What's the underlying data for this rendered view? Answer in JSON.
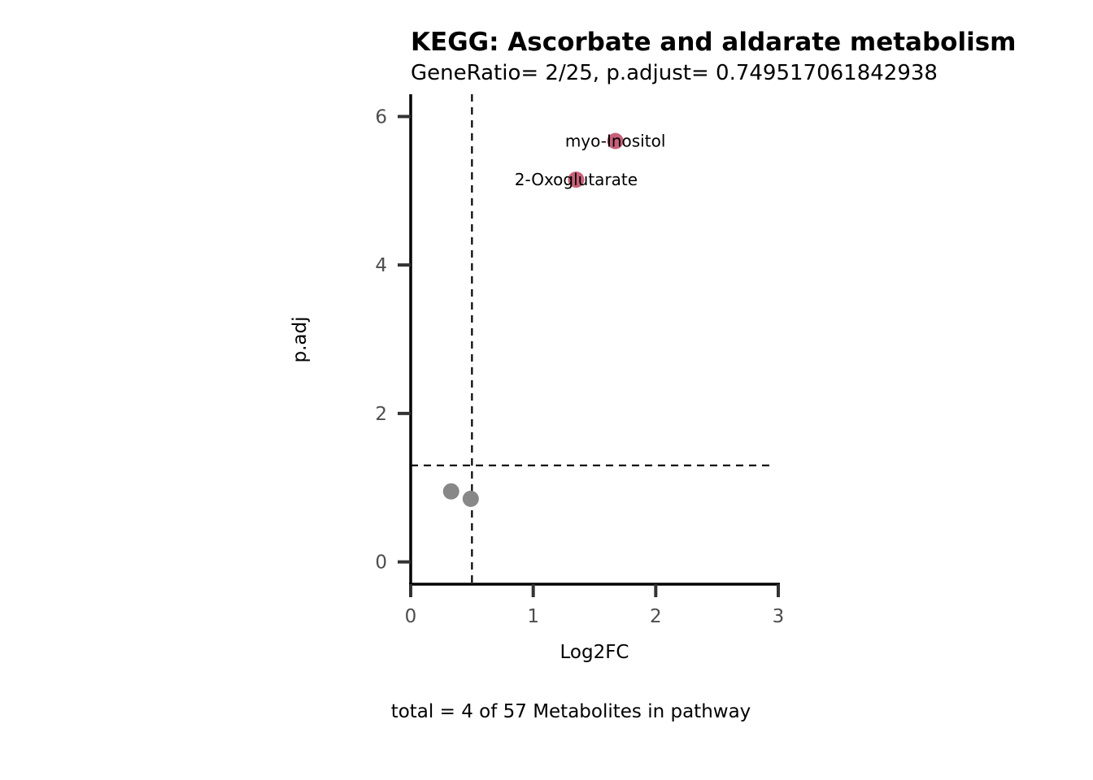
{
  "chart_data": {
    "type": "scatter",
    "title": "KEGG: Ascorbate and aldarate metabolism",
    "subtitle": "GeneRatio= 2/25, p.adjust= 0.749517061842938",
    "xlabel": "Log2FC",
    "ylabel": "p.adj",
    "caption": "total = 4 of 57 Metabolites in pathway",
    "xlim": [
      0,
      3
    ],
    "ylim": [
      -0.3,
      6.3
    ],
    "x_ticks": [
      0,
      1,
      2,
      3
    ],
    "y_ticks": [
      0,
      2,
      4,
      6
    ],
    "thresholds": {
      "vertical_x": 0.5,
      "horizontal_y": 1.3
    },
    "grid": false,
    "colors": {
      "significant": "#C8607A",
      "not_significant": "#888888"
    },
    "points": [
      {
        "x": 1.67,
        "y": 5.67,
        "label": "myo-Inositol",
        "significant": true
      },
      {
        "x": 1.35,
        "y": 5.15,
        "label": "2-Oxoglutarate",
        "significant": true
      },
      {
        "x": 0.33,
        "y": 0.95,
        "label": "",
        "significant": false
      },
      {
        "x": 0.49,
        "y": 0.85,
        "label": "",
        "significant": false
      }
    ]
  }
}
